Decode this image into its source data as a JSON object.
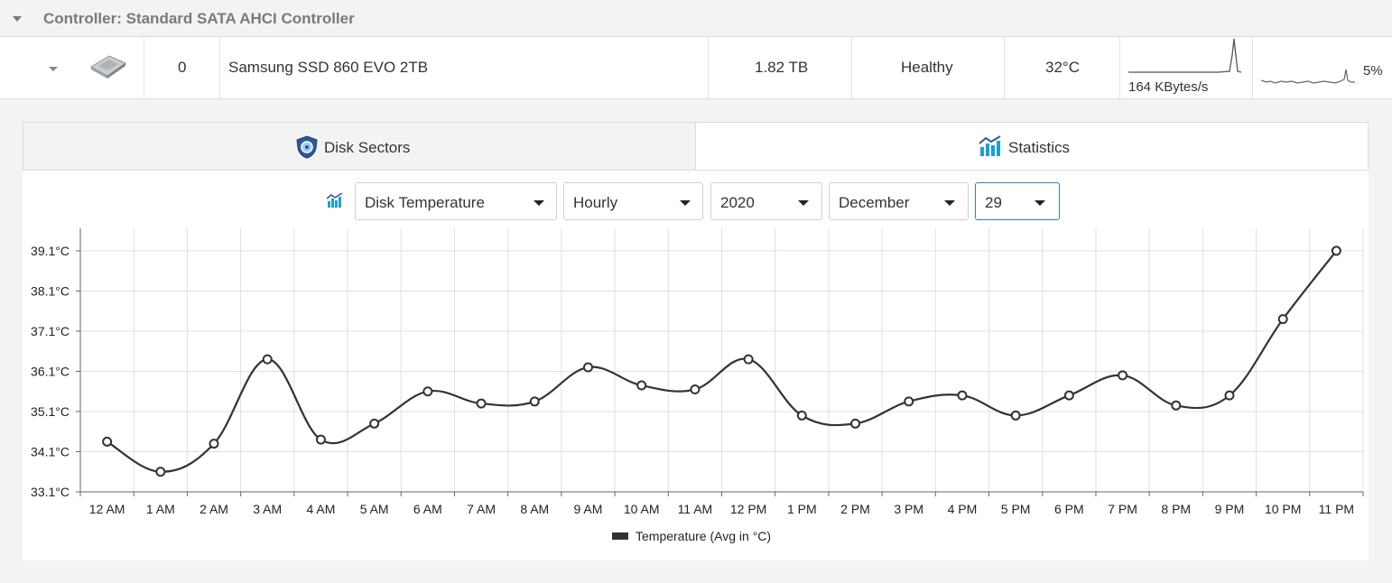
{
  "controller": {
    "title": "Controller: Standard SATA AHCI Controller"
  },
  "disk": {
    "index": "0",
    "name": "Samsung SSD 860 EVO 2TB",
    "capacity": "1.82 TB",
    "health": "Healthy",
    "temperature": "32°C",
    "throughput": "164 KBytes/s",
    "activity": "5%"
  },
  "tabs": {
    "sectors": "Disk Sectors",
    "statistics": "Statistics",
    "active": "statistics"
  },
  "filters": {
    "metric": "Disk Temperature",
    "interval": "Hourly",
    "year": "2020",
    "month": "December",
    "day": "29"
  },
  "colors": {
    "line": "#333333",
    "grid": "#e0e0e0",
    "active_border": "#3d7ab8",
    "stats_icon": "#1a9fd6"
  },
  "chart_data": {
    "type": "line",
    "categories": [
      "12 AM",
      "1 AM",
      "2 AM",
      "3 AM",
      "4 AM",
      "5 AM",
      "6 AM",
      "7 AM",
      "8 AM",
      "9 AM",
      "10 AM",
      "11 AM",
      "12 PM",
      "1 PM",
      "2 PM",
      "3 PM",
      "4 PM",
      "5 PM",
      "6 PM",
      "7 PM",
      "8 PM",
      "9 PM",
      "10 PM",
      "11 PM"
    ],
    "series": [
      {
        "name": "Temperature (Avg in °C)",
        "values": [
          34.35,
          33.6,
          34.3,
          36.4,
          34.4,
          34.8,
          35.6,
          35.3,
          35.35,
          36.2,
          35.75,
          35.65,
          36.4,
          35.0,
          34.8,
          35.35,
          35.5,
          35.0,
          35.5,
          36.0,
          35.25,
          35.5,
          37.4,
          39.1
        ]
      }
    ],
    "yticks": [
      "33.1°C",
      "34.1°C",
      "35.1°C",
      "36.1°C",
      "37.1°C",
      "38.1°C",
      "39.1°C"
    ],
    "ylim": [
      33.1,
      39.66
    ],
    "grid": true,
    "legend_position": "bottom"
  }
}
